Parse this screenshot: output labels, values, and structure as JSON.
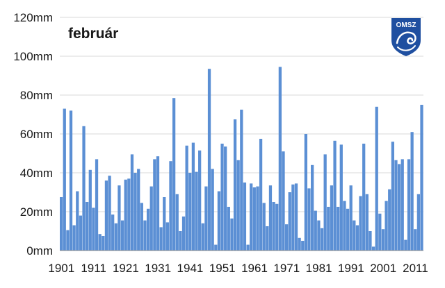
{
  "chart_data": {
    "type": "bar",
    "title": "február",
    "xlabel": "",
    "ylabel": "",
    "unit": "mm",
    "ylim": [
      0,
      120
    ],
    "yticks": [
      "0mm",
      "20mm",
      "40mm",
      "60mm",
      "80mm",
      "100mm",
      "120mm"
    ],
    "xticks": [
      "1901",
      "1911",
      "1921",
      "1931",
      "1941",
      "1951",
      "1961",
      "1971",
      "1981",
      "1991",
      "2001",
      "2011"
    ],
    "grid": true,
    "legend": "none",
    "bar_color": "#5b8fd4",
    "x_start": 1901,
    "x_end": 2013,
    "values": [
      27.5,
      73,
      10.5,
      72,
      13,
      30.5,
      18,
      64,
      25,
      41.5,
      22,
      47,
      8.5,
      7.5,
      36,
      38.5,
      18.5,
      14,
      33.5,
      15.5,
      36.5,
      37,
      49.5,
      40,
      42,
      24.5,
      15.5,
      21.5,
      33,
      47,
      48.5,
      12,
      27.5,
      14.5,
      46,
      78.5,
      29,
      10,
      17.5,
      54,
      40,
      55.5,
      40.5,
      51.5,
      14,
      33,
      93.5,
      42,
      3,
      30.5,
      55,
      53.5,
      22.5,
      16.5,
      67.5,
      46.5,
      72.5,
      35,
      3,
      34.5,
      32.5,
      33,
      57.5,
      24.5,
      12.5,
      33.5,
      25,
      24,
      94.5,
      51,
      13.5,
      30,
      34,
      34.5,
      6.5,
      5,
      60,
      32,
      44,
      20.5,
      15.5,
      11.5,
      49.5,
      22.5,
      33.5,
      56.5,
      22.5,
      54.5,
      25.5,
      21.5,
      33.5,
      15.5,
      13,
      28,
      55,
      29,
      10,
      2,
      74,
      19,
      11,
      25.5,
      31.5,
      56,
      46.5,
      44.5,
      47,
      5.5,
      47,
      61,
      11,
      29,
      75
    ]
  },
  "logo": {
    "text": "OMSZ",
    "color": "#1f4fa0"
  }
}
